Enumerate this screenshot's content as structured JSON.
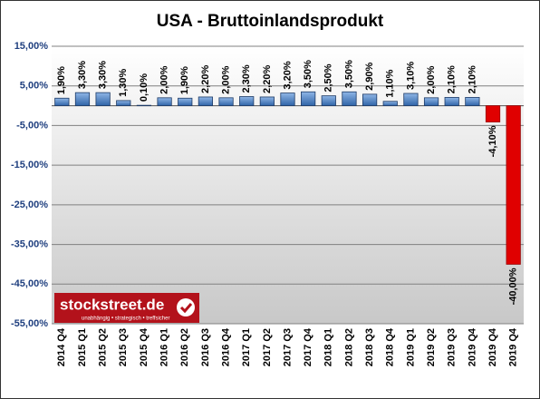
{
  "chart_data": {
    "type": "bar",
    "title": "USA - Bruttoinlandsprodukt",
    "categories": [
      "2014 Q4",
      "2015 Q1",
      "2015 Q2",
      "2015 Q3",
      "2015 Q4",
      "2016 Q1",
      "2016 Q2",
      "2016 Q3",
      "2016 Q4",
      "2017 Q1",
      "2017 Q2",
      "2017 Q3",
      "2017 Q4",
      "2018 Q1",
      "2018 Q2",
      "2018 Q3",
      "2018 Q4",
      "2019 Q1",
      "2019 Q2",
      "2019 Q3",
      "2019 Q4",
      "2019 Q4",
      "2019 Q4"
    ],
    "values": [
      1.9,
      3.3,
      3.3,
      1.3,
      0.1,
      2.0,
      1.9,
      2.2,
      2.0,
      2.3,
      2.2,
      3.2,
      3.5,
      2.5,
      3.5,
      2.9,
      1.1,
      3.1,
      2.0,
      2.1,
      2.1,
      -4.1,
      -40.0
    ],
    "value_labels": [
      "1,90%",
      "3,30%",
      "3,30%",
      "1,30%",
      "0,10%",
      "2,00%",
      "1,90%",
      "2,20%",
      "2,00%",
      "2,30%",
      "2,20%",
      "3,20%",
      "3,50%",
      "2,50%",
      "3,50%",
      "2,90%",
      "1,10%",
      "3,10%",
      "2,00%",
      "2,10%",
      "2,10%",
      "-4,10%",
      "-40,00%"
    ],
    "color": "#4a82c8",
    "negative_color": "#e00000",
    "ylim": [
      -55,
      15
    ],
    "yticks": [
      {
        "value": 15,
        "label": "15,00%"
      },
      {
        "value": 5,
        "label": "5,00%"
      },
      {
        "value": -5,
        "label": "-5,00%"
      },
      {
        "value": -15,
        "label": "-15,00%"
      },
      {
        "value": -25,
        "label": "-25,00%"
      },
      {
        "value": -35,
        "label": "-35,00%"
      },
      {
        "value": -45,
        "label": "-45,00%"
      },
      {
        "value": -55,
        "label": "-55,00%"
      }
    ],
    "grid": true,
    "annotations": [
      "stockstreet.de",
      "unabhängig • strategisch • treffsicher"
    ]
  }
}
